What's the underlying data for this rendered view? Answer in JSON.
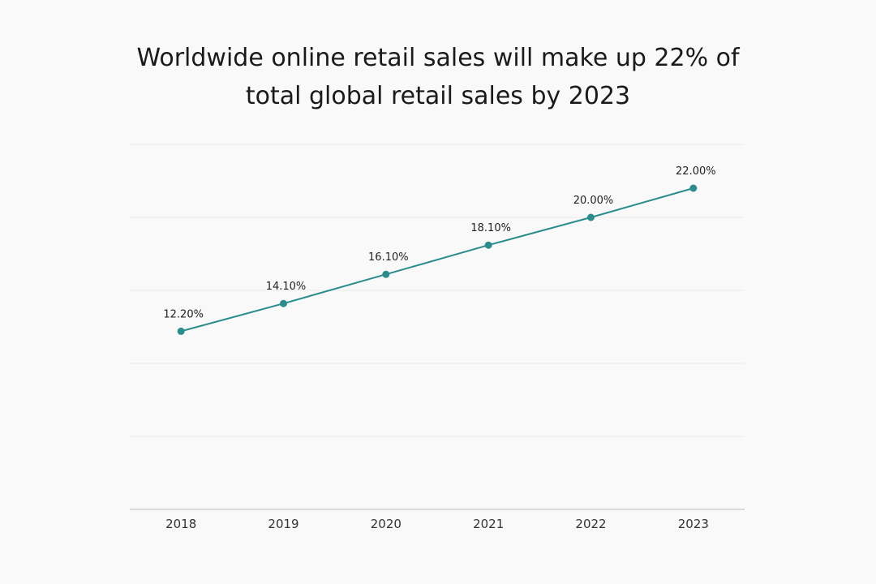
{
  "chart_data": {
    "type": "line",
    "title": "Worldwide online retail sales will make up 22% of total global retail sales by 2023",
    "categories": [
      "2018",
      "2019",
      "2020",
      "2021",
      "2022",
      "2023"
    ],
    "values": [
      12.2,
      14.1,
      16.1,
      18.1,
      20.0,
      22.0
    ],
    "value_labels": [
      "12.20%",
      "14.10%",
      "16.10%",
      "18.10%",
      "20.00%",
      "22.00%"
    ],
    "color": "#2a8c8c",
    "ylim": [
      0,
      25
    ],
    "yticks": [
      0,
      5,
      10,
      15,
      20,
      25
    ],
    "grid": true
  }
}
